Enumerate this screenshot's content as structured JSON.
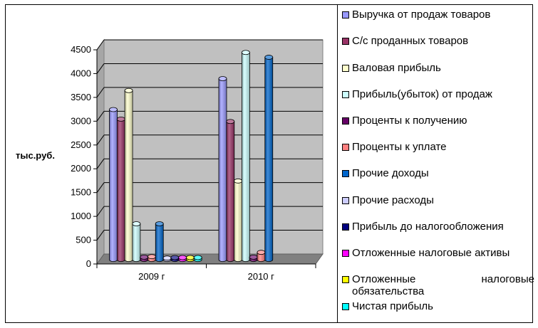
{
  "chart_data": {
    "type": "bar",
    "ylabel": "тыс.руб.",
    "ylim": [
      0,
      4500
    ],
    "yticks": [
      0,
      500,
      1000,
      1500,
      2000,
      2500,
      3000,
      3500,
      4000,
      4500
    ],
    "grid": true,
    "legend_position": "right",
    "categories": [
      "2009 г",
      "2010 г"
    ],
    "series": [
      {
        "name": "Выручка от продаж товаров",
        "color": "#9999ff",
        "values": [
          3150,
          3800
        ]
      },
      {
        "name": "С/с проданных товаров",
        "color": "#993366",
        "values": [
          2950,
          2900
        ]
      },
      {
        "name": "Валовая прибыль",
        "color": "#ffffcc",
        "values": [
          3550,
          1650
        ]
      },
      {
        "name": "Прибыль(убыток) от продаж",
        "color": "#ccffff",
        "values": [
          750,
          4350
        ]
      },
      {
        "name": "Проценты к получению",
        "color": "#660066",
        "values": [
          50,
          50
        ]
      },
      {
        "name": "Проценты к уплате",
        "color": "#ff8080",
        "values": [
          60,
          150
        ]
      },
      {
        "name": "Прочие доходы",
        "color": "#0066cc",
        "values": [
          750,
          4250
        ]
      },
      {
        "name": "Прочие расходы",
        "color": "#ccccff",
        "values": [
          30,
          0
        ]
      },
      {
        "name": "Прибыль до налогообложения",
        "color": "#000080",
        "values": [
          40,
          0
        ]
      },
      {
        "name": "Отложенные налоговые активы",
        "color": "#ff00ff",
        "values": [
          40,
          0
        ]
      },
      {
        "name": "Отложенные налоговые обязательства",
        "color": "#ffff00",
        "values": [
          40,
          0
        ]
      },
      {
        "name": "Чистая прибыль",
        "color": "#00ffff",
        "values": [
          40,
          0
        ]
      }
    ]
  }
}
